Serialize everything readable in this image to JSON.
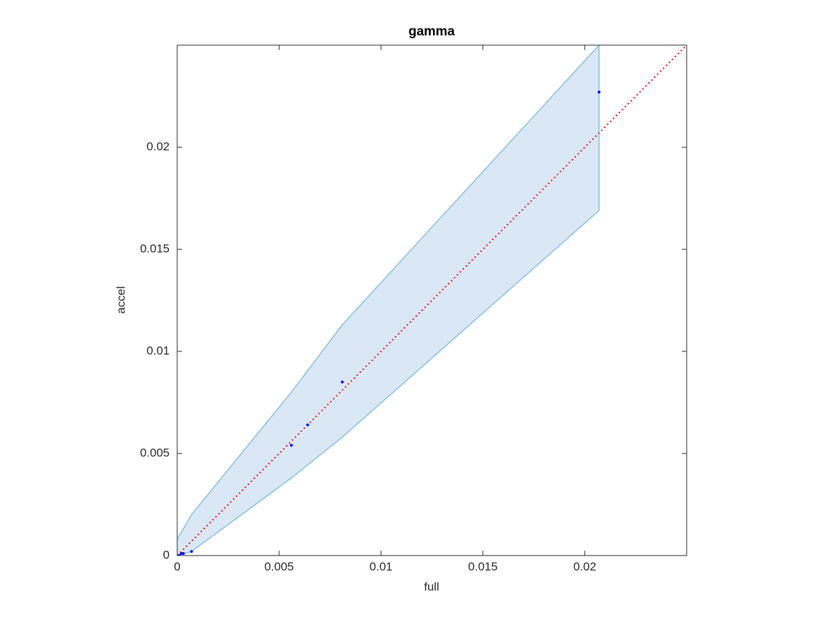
{
  "chart_data": {
    "type": "scatter",
    "title": "gamma",
    "x_label": "full",
    "y_label": "accel",
    "xlim": [
      0,
      0.025
    ],
    "ylim": [
      0,
      0.025
    ],
    "xticks": [
      0,
      0.005,
      0.01,
      0.015,
      0.02
    ],
    "yticks": [
      0,
      0.005,
      0.01,
      0.015,
      0.02
    ],
    "series": [
      {
        "color": "#0000ff",
        "x": [
          0,
          0.0001,
          0.0002,
          0.0003,
          0.0007,
          0.0056,
          0.0064,
          0.0081,
          0.0207
        ],
        "values": [
          0,
          0,
          0.0001,
          0.0001,
          0.0002,
          0.0054,
          0.0064,
          0.0085,
          0.0227
        ]
      }
    ],
    "band": {
      "color": "#dae8f5",
      "edge_color": "#85bde0",
      "x": [
        0,
        0.0007,
        0.0056,
        0.0081,
        0.0207
      ],
      "upper": [
        0.0008,
        0.002,
        0.008,
        0.0113,
        0.025
      ],
      "lower": [
        0,
        0.0002,
        0.0038,
        0.0058,
        0.0169
      ]
    },
    "reference_line": {
      "color": "#ff0000",
      "x": [
        0,
        0.025
      ],
      "values": [
        0,
        0.025
      ]
    }
  }
}
